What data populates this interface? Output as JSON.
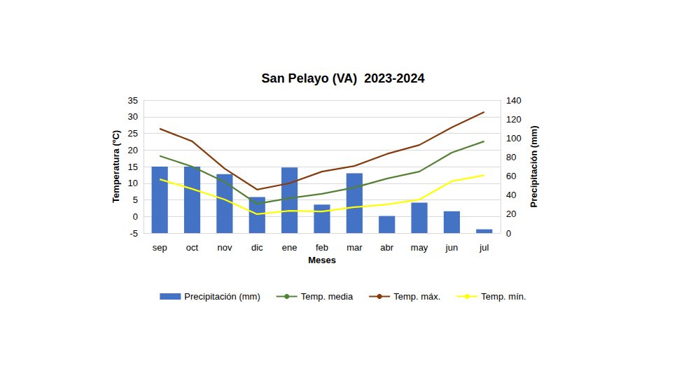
{
  "chart_data": {
    "type": "line",
    "title": "San Pelayo (VA)  2023-2024",
    "x_label": "Meses",
    "y_label": "Temperatura (ºC)",
    "y2_label": "Precipitación (mm)",
    "categories": [
      "sep",
      "oct",
      "nov",
      "dic",
      "ene",
      "feb",
      "mar",
      "abr",
      "may",
      "jun",
      "jul"
    ],
    "ylim": [
      -5,
      35
    ],
    "yticks": [
      -5,
      0,
      5,
      10,
      15,
      20,
      25,
      30,
      35
    ],
    "y2lim": [
      0,
      140
    ],
    "y2ticks": [
      0,
      20,
      40,
      60,
      80,
      100,
      120,
      140
    ],
    "grid": true,
    "legend": "bottom",
    "series": [
      {
        "name": "Precipitación (mm)",
        "type": "bar",
        "axis": "y2",
        "color": "#4472c4",
        "values": [
          70,
          70,
          62,
          38,
          69,
          30,
          63,
          18,
          32,
          23,
          4
        ]
      },
      {
        "name": "Temp. media",
        "type": "line",
        "color": "#548235",
        "values": [
          18.2,
          15.0,
          10.4,
          3.8,
          5.5,
          6.8,
          8.7,
          11.4,
          13.5,
          19.2,
          22.6
        ]
      },
      {
        "name": "Temp. máx.",
        "type": "line",
        "color": "#843c0c",
        "values": [
          26.4,
          22.6,
          14.4,
          8.1,
          10.0,
          13.5,
          15.2,
          18.8,
          21.5,
          26.8,
          31.4
        ]
      },
      {
        "name": "Temp. mín.",
        "type": "line",
        "color": "#ffff00",
        "values": [
          11.2,
          8.3,
          5.1,
          0.7,
          1.7,
          1.5,
          2.8,
          3.6,
          5.1,
          10.6,
          12.4
        ]
      }
    ]
  }
}
